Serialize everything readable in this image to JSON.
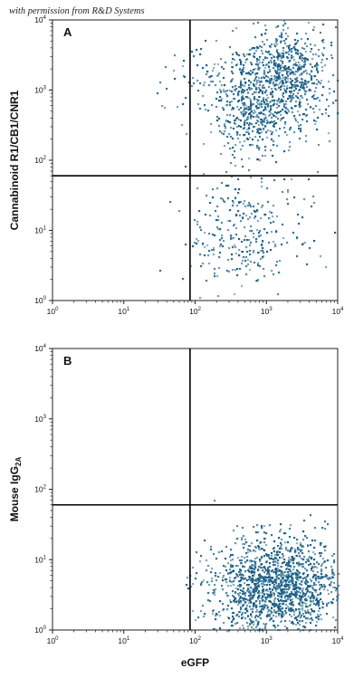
{
  "watermark": "with permission from R&D Systems",
  "chart_data": [
    {
      "type": "scatter",
      "panel": "A",
      "xlabel": "",
      "ylabel": "Cannabinoid R1/CB1/CNR1",
      "xscale": "log",
      "yscale": "log",
      "xlim": [
        1,
        10000
      ],
      "ylim": [
        1,
        10000
      ],
      "x_ticks": [
        "10^0",
        "10^1",
        "10^2",
        "10^3",
        "10^4"
      ],
      "y_ticks": [
        "10^0",
        "10^1",
        "10^2",
        "10^3",
        "10^4"
      ],
      "quadrant_gate": {
        "x": 85,
        "y": 60
      },
      "point_color": "#1a5f85",
      "populations": [
        {
          "x_center": 1800,
          "y_center": 1600,
          "x_spread_decades": 0.35,
          "y_spread_decades": 0.35,
          "relative_density": 0.45
        },
        {
          "x_center": 650,
          "y_center": 380,
          "x_spread_decades": 0.3,
          "y_spread_decades": 0.25,
          "relative_density": 0.2
        },
        {
          "x_center": 450,
          "y_center": 1300,
          "x_spread_decades": 0.45,
          "y_spread_decades": 0.25,
          "relative_density": 0.15
        },
        {
          "x_center": 500,
          "y_center": 9,
          "x_spread_decades": 0.4,
          "y_spread_decades": 0.45,
          "relative_density": 0.2
        }
      ]
    },
    {
      "type": "scatter",
      "panel": "B",
      "xlabel": "eGFP",
      "ylabel": "Mouse IgG2A",
      "xscale": "log",
      "yscale": "log",
      "xlim": [
        1,
        10000
      ],
      "ylim": [
        1,
        10000
      ],
      "x_ticks": [
        "10^0",
        "10^1",
        "10^2",
        "10^3",
        "10^4"
      ],
      "y_ticks": [
        "10^0",
        "10^1",
        "10^2",
        "10^3",
        "10^4"
      ],
      "quadrant_gate": {
        "x": 85,
        "y": 60
      },
      "point_color": "#1a5f85",
      "populations": [
        {
          "x_center": 1400,
          "y_center": 4,
          "x_spread_decades": 0.45,
          "y_spread_decades": 0.35,
          "relative_density": 1.0
        }
      ]
    }
  ]
}
